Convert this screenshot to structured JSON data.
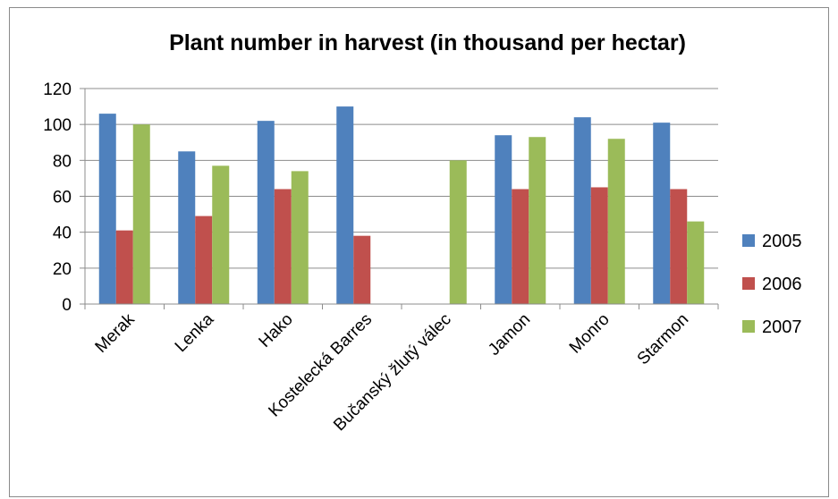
{
  "chart_data": {
    "type": "bar",
    "title": "Plant number in harvest (in thousand per hectar)",
    "xlabel": "",
    "ylabel": "",
    "ylim": [
      0,
      120
    ],
    "yticks": [
      "0",
      "20",
      "40",
      "60",
      "80",
      "100",
      "120"
    ],
    "grid": true,
    "legend_position": "right",
    "categories": [
      "Merak",
      "Lenka",
      "Hako",
      "Kostelecká Barres",
      "Bučanský žlutý válec",
      "Jamon",
      "Monro",
      "Starmon"
    ],
    "series": [
      {
        "name": "2005",
        "color": "#4f81bd",
        "values": [
          106,
          85,
          102,
          110,
          null,
          94,
          104,
          101
        ]
      },
      {
        "name": "2006",
        "color": "#c0504d",
        "values": [
          41,
          49,
          64,
          38,
          null,
          64,
          65,
          64
        ]
      },
      {
        "name": "2007",
        "color": "#9bbb59",
        "values": [
          100,
          77,
          74,
          null,
          80,
          93,
          92,
          46
        ]
      }
    ]
  }
}
